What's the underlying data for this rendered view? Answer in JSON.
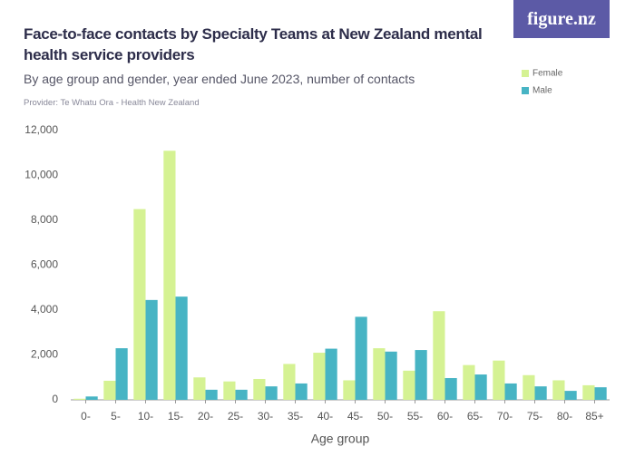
{
  "chart_data": {
    "type": "bar",
    "title": "Face-to-face contacts by Specialty Teams at New Zealand mental health service providers",
    "subtitle": "By age group and gender, year ended June 2023, number of contacts",
    "provider": "Provider: Te Whatu Ora - Health New Zealand",
    "logo": "figure.nz",
    "x_label": "Age group",
    "categories": [
      "0-",
      "5-",
      "10-",
      "15-",
      "20-",
      "25-",
      "30-",
      "35-",
      "40-",
      "45-",
      "50-",
      "55-",
      "60-",
      "65-",
      "70-",
      "75-",
      "80-",
      "85+"
    ],
    "series": [
      {
        "name": "Female",
        "color": "#d5f293",
        "values": [
          50,
          850,
          8500,
          11100,
          1000,
          820,
          930,
          1600,
          2100,
          870,
          2300,
          1300,
          3950,
          1550,
          1750,
          1100,
          870,
          650
        ]
      },
      {
        "name": "Male",
        "color": "#47b4c4",
        "values": [
          150,
          2300,
          4450,
          4600,
          450,
          450,
          600,
          730,
          2280,
          3700,
          2150,
          2220,
          970,
          1130,
          730,
          600,
          400,
          560
        ]
      }
    ],
    "ylim": [
      0,
      12000
    ],
    "yticks": [
      0,
      {
        "value": 2000,
        "label": "2,000"
      },
      {
        "value": 4000,
        "label": "4,000"
      },
      {
        "value": 6000,
        "label": "6,000"
      },
      {
        "value": 8000,
        "label": "8,000"
      },
      {
        "value": 10000,
        "label": "10,000"
      },
      {
        "value": 12000,
        "label": "12,000"
      }
    ],
    "grid": false,
    "legend": "top-right"
  }
}
